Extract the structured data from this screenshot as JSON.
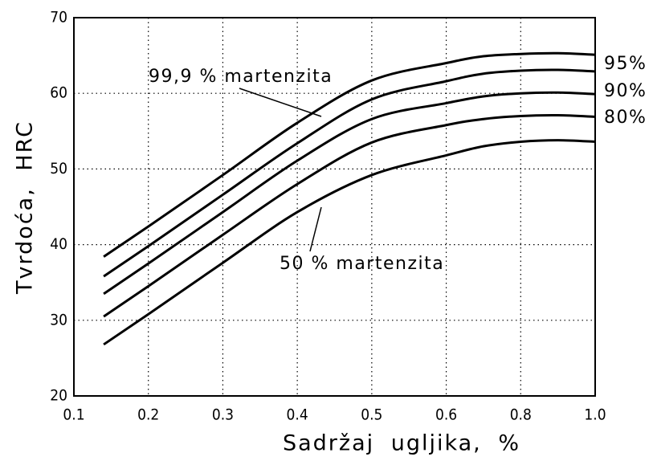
{
  "chart_data": {
    "type": "line",
    "xlabel": "Sadržaj ugljika, %",
    "ylabel": "Tvrdoća, HRC",
    "x": [
      0.14,
      0.2,
      0.3,
      0.4,
      0.5,
      0.6,
      0.7,
      0.8,
      0.9,
      1.0
    ],
    "series": [
      {
        "name": "99,9 % martenzita",
        "color": "#000000",
        "values": [
          38.4,
          42.4,
          49.2,
          56.1,
          61.7,
          64,
          64.9,
          65.2,
          65.3,
          65.1
        ]
      },
      {
        "name": "95%",
        "color": "#000000",
        "values": [
          35.8,
          39.8,
          46.6,
          53.4,
          59.2,
          61.6,
          62.6,
          63,
          63.1,
          62.9
        ]
      },
      {
        "name": "90%",
        "color": "#000000",
        "values": [
          33.5,
          37.5,
          44.3,
          51.1,
          56.6,
          58.7,
          59.6,
          60,
          60.1,
          59.9
        ]
      },
      {
        "name": "80%",
        "color": "#000000",
        "values": [
          30.5,
          34.5,
          41.3,
          48,
          53.5,
          55.8,
          56.6,
          57,
          57.1,
          56.9
        ]
      },
      {
        "name": "50 % martenzita",
        "color": "#000000",
        "values": [
          26.8,
          30.8,
          37.6,
          44.3,
          49.2,
          51.8,
          53,
          53.6,
          53.8,
          53.6
        ]
      }
    ],
    "xlim": [
      0.1,
      1.0
    ],
    "xticks": [
      {
        "value": 0.1,
        "label": "0.1"
      },
      {
        "value": 0.2,
        "label": "0.2"
      },
      {
        "value": 0.3,
        "label": "0.3"
      },
      {
        "value": 0.4,
        "label": "0.4"
      },
      {
        "value": 0.5,
        "label": "0.5"
      },
      {
        "value": 0.6,
        "label": "0.6"
      },
      {
        "value": 0.8,
        "label": "0.8"
      },
      {
        "value": 1.0,
        "label": "1.0"
      }
    ],
    "ylim": [
      20,
      70
    ],
    "yticks": [
      20,
      30,
      40,
      50,
      60,
      70
    ],
    "grid": true
  }
}
